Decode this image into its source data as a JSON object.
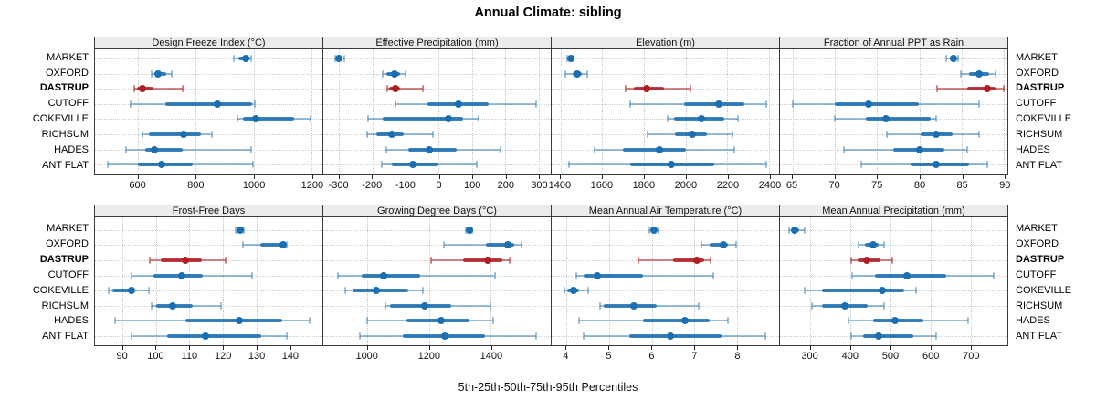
{
  "title": "Annual Climate: sibling",
  "caption": "5th-25th-50th-75th-95th Percentiles",
  "sites": [
    "MARKET",
    "OXFORD",
    "DASTRUP",
    "CUTOFF",
    "COKEVILLE",
    "RICHSUM",
    "HADES",
    "ANT FLAT"
  ],
  "highlight_site": "DASTRUP",
  "colors": {
    "blue_dot": "#1b6fb0",
    "blue_iqr": "rgba(27,111,176,0.85)",
    "blue_whisker": "rgba(27,111,176,0.45)",
    "red_dot": "#b01e24",
    "red_iqr": "rgba(176,30,36,0.85)",
    "red_whisker": "rgba(176,30,36,0.55)",
    "strip_bg": "#ececec",
    "panel_border": "#3a3a3a",
    "grid": "#c7c7c7"
  },
  "chart_data": {
    "type": "dotplot-intervals",
    "note": "horizontal 5-25-50-75-95 percentile intervals; thin line 5th-95th, thick line 25th-75th, dot median",
    "grid": [
      2,
      4
    ],
    "percentiles": [
      5,
      25,
      50,
      75,
      95
    ],
    "row_order_top_to_bottom": [
      "MARKET",
      "OXFORD",
      "DASTRUP",
      "CUTOFF",
      "COKEVILLE",
      "RICHSUM",
      "HADES",
      "ANT FLAT"
    ],
    "panels": [
      {
        "label": "Design Freeze Index (°C)",
        "xlim": [
          451,
          1238
        ],
        "ticks": [
          600,
          800,
          1000,
          1200
        ],
        "values": {
          "MARKET": [
            930,
            947,
            973,
            987,
            991
          ],
          "OXFORD": [
            646,
            655,
            670,
            698,
            718
          ],
          "DASTRUP": [
            588,
            597,
            615,
            652,
            755
          ],
          "CUTOFF": [
            573,
            694,
            873,
            995,
            1005
          ],
          "COKEVILLE": [
            944,
            962,
            1007,
            1140,
            1196
          ],
          "RICHSUM": [
            615,
            637,
            759,
            817,
            854
          ],
          "HADES": [
            558,
            626,
            658,
            753,
            991
          ],
          "ANT FLAT": [
            494,
            600,
            683,
            790,
            997
          ]
        }
      },
      {
        "label": "Effective Precipitation (mm)",
        "xlim": [
          -348,
          337
        ],
        "ticks": [
          -300,
          -200,
          -100,
          0,
          100,
          200,
          300
        ],
        "values": {
          "MARKET": [
            -312,
            -305,
            -300,
            -292,
            -285
          ],
          "OXFORD": [
            -170,
            -157,
            -133,
            -116,
            -100
          ],
          "DASTRUP": [
            -155,
            -149,
            -132,
            -118,
            -49
          ],
          "CUTOFF": [
            -130,
            -35,
            60,
            150,
            293
          ],
          "COKEVILLE": [
            -213,
            -170,
            30,
            72,
            120
          ],
          "RICHSUM": [
            -217,
            -188,
            -141,
            -107,
            -19
          ],
          "HADES": [
            -159,
            -91,
            -29,
            55,
            185
          ],
          "ANT FLAT": [
            -172,
            -141,
            -79,
            0,
            115
          ]
        }
      },
      {
        "label": "Elevation (m)",
        "xlim": [
          1357,
          2448
        ],
        "ticks": [
          1400,
          1600,
          1800,
          2000,
          2200,
          2400
        ],
        "values": {
          "MARKET": [
            1432,
            1441,
            1447,
            1453,
            1460
          ],
          "OXFORD": [
            1422,
            1456,
            1481,
            1503,
            1529
          ],
          "DASTRUP": [
            1710,
            1751,
            1812,
            1897,
            2021
          ],
          "CUTOFF": [
            1735,
            1991,
            2157,
            2282,
            2385
          ],
          "COKEVILLE": [
            1912,
            1944,
            2074,
            2187,
            2253
          ],
          "RICHSUM": [
            1815,
            1947,
            2032,
            2103,
            2226
          ],
          "HADES": [
            1562,
            1697,
            1874,
            2000,
            2234
          ],
          "ANT FLAT": [
            1440,
            1735,
            1932,
            2135,
            2385
          ]
        }
      },
      {
        "label": "Fraction of Annual PPT as Rain",
        "xlim": [
          63.5,
          90.4
        ],
        "ticks": [
          65,
          70,
          75,
          80,
          85,
          90
        ],
        "values": {
          "MARKET": [
            83.2,
            83.6,
            84.0,
            84.4,
            84.6
          ],
          "OXFORD": [
            84.9,
            85.9,
            87.0,
            88.2,
            89.0
          ],
          "DASTRUP": [
            82.1,
            85.7,
            88.0,
            89.0,
            90.0
          ],
          "CUTOFF": [
            65.0,
            70.0,
            74.0,
            79.9,
            87.0
          ],
          "COKEVILLE": [
            70.0,
            73.7,
            76.0,
            81.3,
            82.0
          ],
          "RICHSUM": [
            76.1,
            80.1,
            82.0,
            83.9,
            87.0
          ],
          "HADES": [
            71.1,
            76.9,
            80.0,
            83.0,
            85.7
          ],
          "ANT FLAT": [
            73.1,
            79.0,
            82.0,
            85.9,
            88.0
          ]
        }
      },
      {
        "label": "Frost-Free Days",
        "xlim": [
          81.7,
          149.8
        ],
        "ticks": [
          90,
          100,
          110,
          120,
          130,
          140
        ],
        "values": {
          "MARKET": [
            123.8,
            124.6,
            125.2,
            125.9,
            126.4
          ],
          "OXFORD": [
            126.1,
            131.1,
            138.1,
            138.9,
            139.2
          ],
          "DASTRUP": [
            98.0,
            101.4,
            108.7,
            113.7,
            120.8
          ],
          "CUTOFF": [
            92.6,
            99.1,
            107.8,
            113.9,
            128.8
          ],
          "COKEVILLE": [
            85.9,
            86.8,
            92.6,
            93.5,
            97.8
          ],
          "RICHSUM": [
            98.7,
            100.0,
            104.9,
            111.0,
            119.5
          ],
          "HADES": [
            87.7,
            108.7,
            125.0,
            137.9,
            145.9
          ],
          "ANT FLAT": [
            92.7,
            103.2,
            114.9,
            131.6,
            139.1
          ]
        }
      },
      {
        "label": "Growing Degree Days (°C)",
        "xlim": [
          857,
          1594
        ],
        "ticks": [
          1000,
          1200,
          1400
        ],
        "values": {
          "MARKET": [
            1320,
            1326,
            1330,
            1335,
            1340
          ],
          "OXFORD": [
            1247,
            1383,
            1454,
            1475,
            1498
          ],
          "DASTRUP": [
            1207,
            1310,
            1390,
            1437,
            1461
          ],
          "CUTOFF": [
            905,
            980,
            1053,
            1170,
            1412
          ],
          "COKEVILLE": [
            927,
            951,
            1029,
            1131,
            1180
          ],
          "RICHSUM": [
            1058,
            1073,
            1187,
            1272,
            1398
          ],
          "HADES": [
            1000,
            1126,
            1238,
            1330,
            1407
          ],
          "ANT FLAT": [
            975,
            1115,
            1250,
            1380,
            1548
          ]
        }
      },
      {
        "label": "Mean Annual Air Temperature (°C)",
        "xlim": [
          3.65,
          8.99
        ],
        "ticks": [
          4,
          5,
          6,
          7,
          8
        ],
        "values": {
          "MARKET": [
            5.95,
            6.0,
            6.05,
            6.1,
            6.16
          ],
          "OXFORD": [
            7.17,
            7.35,
            7.69,
            7.78,
            7.99
          ],
          "DASTRUP": [
            5.68,
            6.5,
            7.05,
            7.24,
            7.38
          ],
          "CUTOFF": [
            4.23,
            4.4,
            4.72,
            5.79,
            7.45
          ],
          "COKEVILLE": [
            3.96,
            4.01,
            4.16,
            4.3,
            4.5
          ],
          "RICHSUM": [
            4.78,
            4.88,
            5.59,
            6.11,
            7.11
          ],
          "HADES": [
            4.3,
            5.79,
            6.78,
            7.35,
            7.79
          ],
          "ANT FLAT": [
            4.4,
            5.47,
            6.43,
            7.63,
            8.66
          ]
        }
      },
      {
        "label": "Mean Annual Precipitation (mm)",
        "xlim": [
          224,
          792
        ],
        "ticks": [
          300,
          400,
          500,
          600,
          700
        ],
        "values": {
          "MARKET": [
            247,
            253,
            260,
            272,
            286
          ],
          "OXFORD": [
            421,
            437,
            456,
            470,
            484
          ],
          "DASTRUP": [
            402,
            419,
            440,
            476,
            505
          ],
          "CUTOFF": [
            405,
            461,
            541,
            639,
            757
          ],
          "COKEVILLE": [
            285,
            330,
            480,
            535,
            565
          ],
          "RICHSUM": [
            304,
            328,
            387,
            442,
            485
          ],
          "HADES": [
            394,
            457,
            512,
            582,
            695
          ],
          "ANT FLAT": [
            402,
            432,
            470,
            556,
            614
          ]
        }
      }
    ]
  }
}
